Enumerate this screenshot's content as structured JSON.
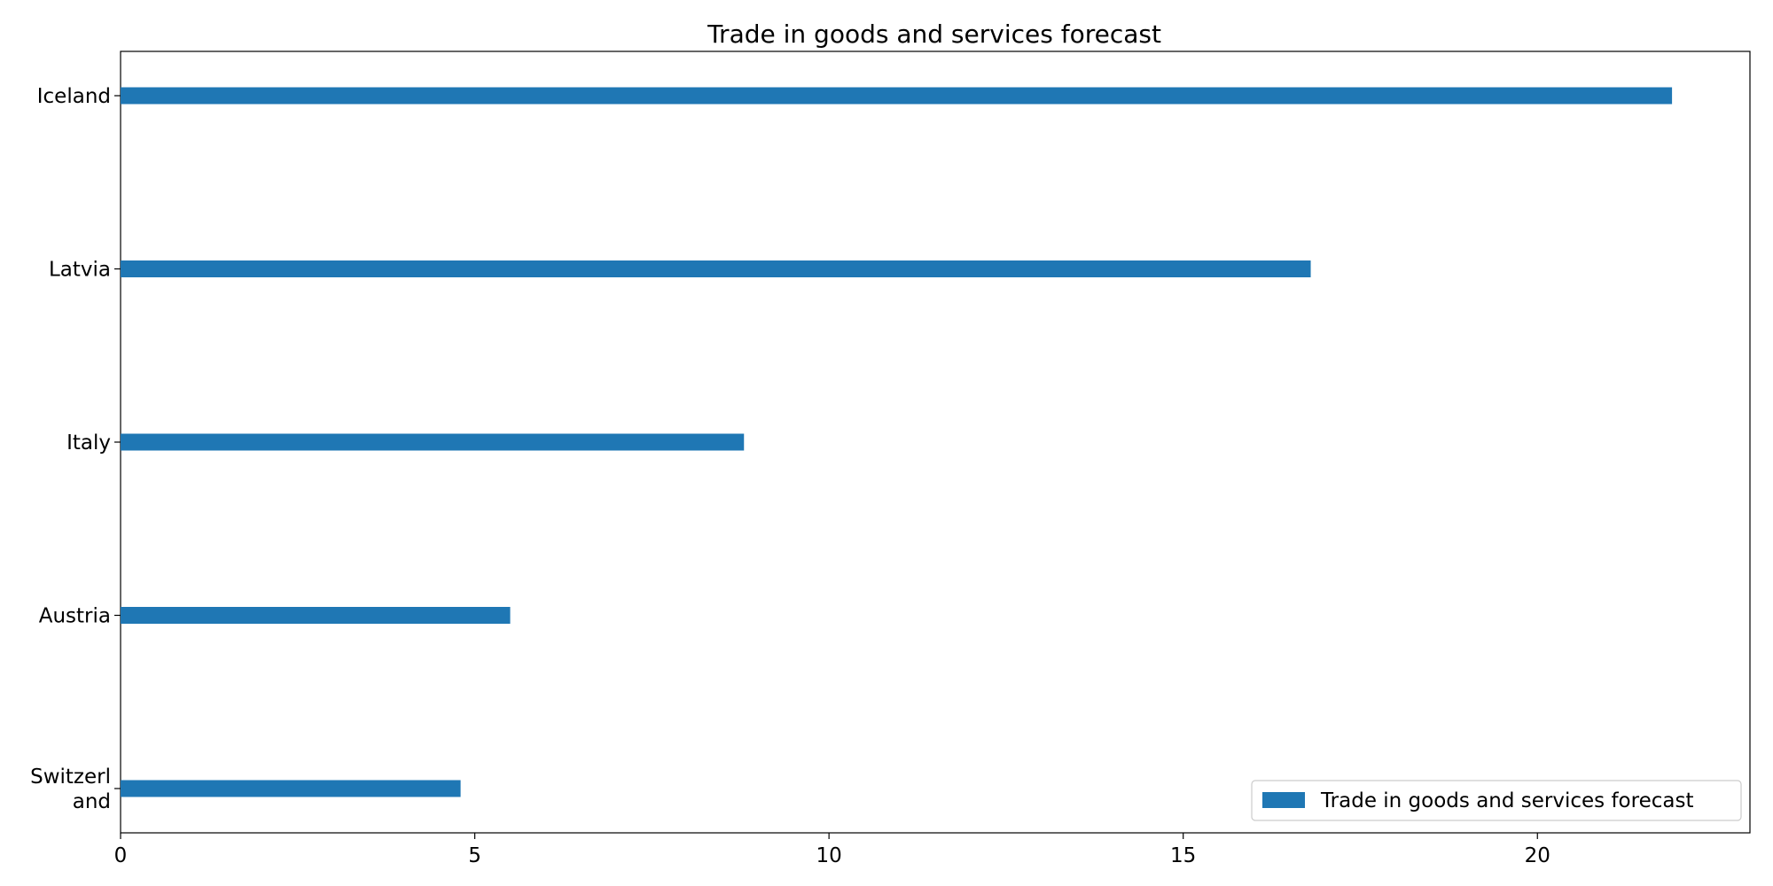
{
  "chart_data": {
    "type": "bar",
    "orientation": "horizontal",
    "title": "Trade in goods and services forecast",
    "xlabel": "",
    "ylabel": "",
    "categories": [
      "Iceland",
      "Latvia",
      "Italy",
      "Austria",
      "Switzerland"
    ],
    "category_labels": [
      [
        "Iceland"
      ],
      [
        "Latvia"
      ],
      [
        "Italy"
      ],
      [
        "Austria"
      ],
      [
        "Switzerl",
        "and"
      ]
    ],
    "series": [
      {
        "name": "Trade in goods and services forecast",
        "values": [
          21.9,
          16.8,
          8.8,
          5.5,
          4.8
        ],
        "color": "#1f77b4"
      }
    ],
    "xlim": [
      0,
      23
    ],
    "xticks": [
      0,
      5,
      10,
      15,
      20
    ],
    "grid": false,
    "legend_position": "lower right"
  }
}
